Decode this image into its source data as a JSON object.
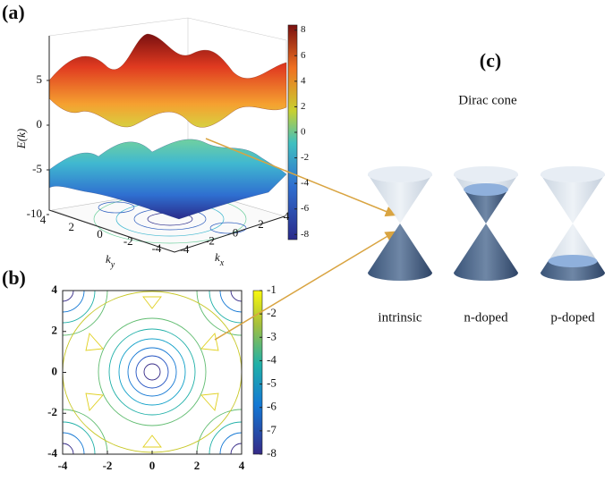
{
  "panel_a": {
    "label": "(a)",
    "z_label": "E(k)",
    "zlim": [
      -10,
      8
    ],
    "zticks": [
      -10,
      -5,
      0,
      5
    ],
    "ky_label": {
      "main": "k",
      "sub": "y"
    },
    "ky_lim": [
      -4,
      4
    ],
    "ky_ticks": [
      4,
      2,
      0,
      -2,
      -4
    ],
    "kx_label": {
      "main": "k",
      "sub": "x"
    },
    "kx_lim": [
      -4,
      4
    ],
    "kx_ticks": [
      -4,
      -2,
      0,
      2,
      4
    ],
    "colorbar_lim": [
      -8.4,
      8.4
    ],
    "colorbar_ticks": [
      8,
      6,
      4,
      2,
      0,
      -2,
      -4,
      -6,
      -8
    ]
  },
  "panel_b": {
    "label": "(b)",
    "xlim": [
      -4,
      4
    ],
    "ylim": [
      -4,
      4
    ],
    "xticks": [
      -4,
      -2,
      0,
      2,
      4
    ],
    "yticks": [
      -4,
      -2,
      0,
      2,
      4
    ],
    "colorbar_lim": [
      -8,
      -1
    ],
    "colorbar_ticks": [
      -1,
      -2,
      -3,
      -4,
      -5,
      -6,
      -7,
      -8
    ]
  },
  "panel_c": {
    "label": "(c)",
    "title": "Dirac cone",
    "cones": [
      "intrinsic",
      "n-doped",
      "p-doped"
    ]
  }
}
